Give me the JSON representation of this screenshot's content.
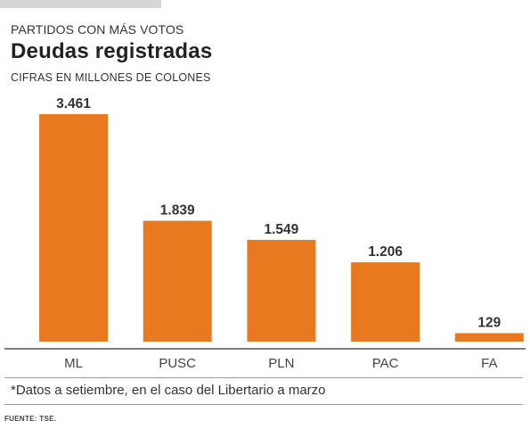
{
  "header": {
    "kicker": "PARTIDOS CON MÁS VOTOS",
    "title": "Deudas registradas",
    "subtitle": "CIFRAS EN MILLONES DE COLONES"
  },
  "chart_data": {
    "type": "bar",
    "title": "Deudas registradas",
    "subtitle": "CIFRAS EN MILLONES DE COLONES",
    "categories": [
      "ML",
      "PUSC",
      "PLN",
      "PAC",
      "FA"
    ],
    "values": [
      3461,
      1839,
      1549,
      1206,
      129
    ],
    "value_labels": [
      "3.461",
      "1.839",
      "1.549",
      "1.206",
      "129"
    ],
    "ylim": [
      0,
      3461
    ],
    "grid": false,
    "bar_color": "#e8791f",
    "axis_color": "#555555"
  },
  "footer": {
    "note": "*Datos a setiembre, en el caso del Libertario a marzo",
    "source": "FUENTE: TSE."
  }
}
